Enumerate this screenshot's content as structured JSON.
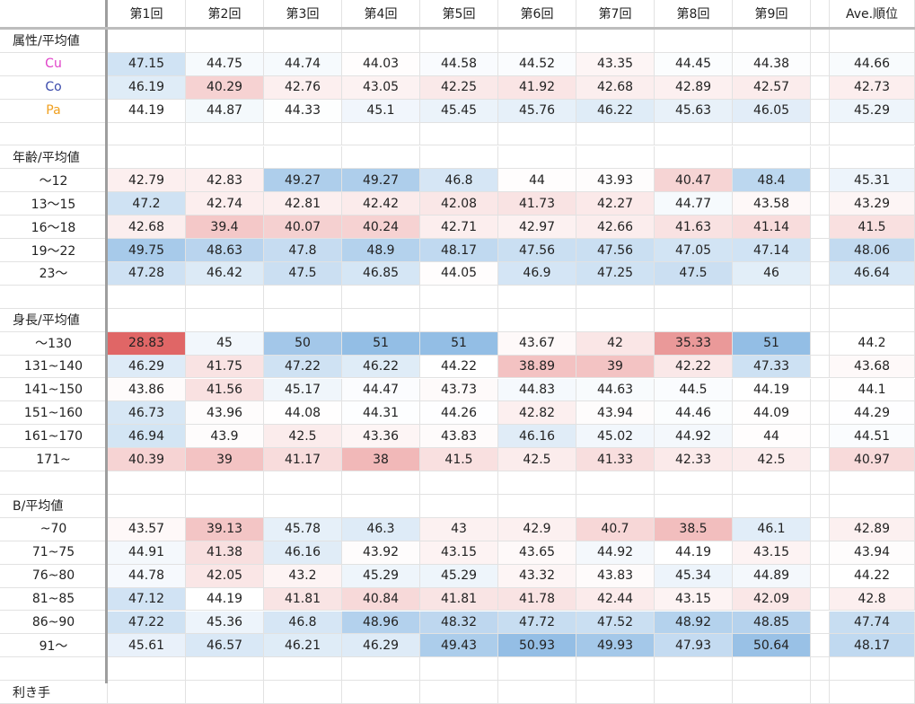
{
  "sheet": {
    "headers": [
      "第1回",
      "第2回",
      "第3回",
      "第4回",
      "第5回",
      "第6回",
      "第7回",
      "第8回",
      "第9回",
      "",
      "Ave.順位"
    ],
    "rows": [
      {
        "type": "section",
        "label": "属性/平均値"
      },
      {
        "type": "data",
        "label": "Cu",
        "color": "#e040c8",
        "values": [
          "47.15",
          "44.75",
          "44.74",
          "44.03",
          "44.58",
          "44.52",
          "43.35",
          "44.45",
          "44.38",
          "44.66"
        ]
      },
      {
        "type": "data",
        "label": "Co",
        "color": "#3949ab",
        "values": [
          "46.19",
          "40.29",
          "42.76",
          "43.05",
          "42.25",
          "41.92",
          "42.68",
          "42.89",
          "42.57",
          "42.73"
        ]
      },
      {
        "type": "data",
        "label": "Pa",
        "color": "#f0a020",
        "values": [
          "44.19",
          "44.87",
          "44.33",
          "45.1",
          "45.45",
          "45.76",
          "46.22",
          "45.63",
          "46.05",
          "45.29"
        ]
      },
      {
        "type": "blank"
      },
      {
        "type": "section",
        "label": "年齢/平均値"
      },
      {
        "type": "data",
        "label": "〜12",
        "values": [
          "42.79",
          "42.83",
          "49.27",
          "49.27",
          "46.8",
          "44",
          "43.93",
          "40.47",
          "48.4",
          "45.31"
        ]
      },
      {
        "type": "data",
        "label": "13〜15",
        "values": [
          "47.2",
          "42.74",
          "42.81",
          "42.42",
          "42.08",
          "41.73",
          "42.27",
          "44.77",
          "43.58",
          "43.29"
        ]
      },
      {
        "type": "data",
        "label": "16〜18",
        "values": [
          "42.68",
          "39.4",
          "40.07",
          "40.24",
          "42.71",
          "42.97",
          "42.66",
          "41.63",
          "41.14",
          "41.5"
        ]
      },
      {
        "type": "data",
        "label": "19〜22",
        "values": [
          "49.75",
          "48.63",
          "47.8",
          "48.9",
          "48.17",
          "47.56",
          "47.56",
          "47.05",
          "47.14",
          "48.06"
        ]
      },
      {
        "type": "data",
        "label": "23〜",
        "values": [
          "47.28",
          "46.42",
          "47.5",
          "46.85",
          "44.05",
          "46.9",
          "47.25",
          "47.5",
          "46",
          "46.64"
        ]
      },
      {
        "type": "blank"
      },
      {
        "type": "section",
        "label": "身長/平均値"
      },
      {
        "type": "data",
        "label": "〜130",
        "values": [
          "28.83",
          "45",
          "50",
          "51",
          "51",
          "43.67",
          "42",
          "35.33",
          "51",
          "44.2"
        ]
      },
      {
        "type": "data",
        "label": "131~140",
        "values": [
          "46.29",
          "41.75",
          "47.22",
          "46.22",
          "44.22",
          "38.89",
          "39",
          "42.22",
          "47.33",
          "43.68"
        ]
      },
      {
        "type": "data",
        "label": "141~150",
        "values": [
          "43.86",
          "41.56",
          "45.17",
          "44.47",
          "43.73",
          "44.83",
          "44.63",
          "44.5",
          "44.19",
          "44.1"
        ]
      },
      {
        "type": "data",
        "label": "151~160",
        "values": [
          "46.73",
          "43.96",
          "44.08",
          "44.31",
          "44.26",
          "42.82",
          "43.94",
          "44.46",
          "44.09",
          "44.29"
        ]
      },
      {
        "type": "data",
        "label": "161~170",
        "values": [
          "46.94",
          "43.9",
          "42.5",
          "43.36",
          "43.83",
          "46.16",
          "45.02",
          "44.92",
          "44",
          "44.51"
        ]
      },
      {
        "type": "data",
        "label": "171~",
        "values": [
          "40.39",
          "39",
          "41.17",
          "38",
          "41.5",
          "42.5",
          "41.33",
          "42.33",
          "42.5",
          "40.97"
        ]
      },
      {
        "type": "blank"
      },
      {
        "type": "section",
        "label": "B/平均値"
      },
      {
        "type": "data",
        "label": "~70",
        "values": [
          "43.57",
          "39.13",
          "45.78",
          "46.3",
          "43",
          "42.9",
          "40.7",
          "38.5",
          "46.1",
          "42.89"
        ]
      },
      {
        "type": "data",
        "label": "71~75",
        "values": [
          "44.91",
          "41.38",
          "46.16",
          "43.92",
          "43.15",
          "43.65",
          "44.92",
          "44.19",
          "43.15",
          "43.94"
        ]
      },
      {
        "type": "data",
        "label": "76~80",
        "values": [
          "44.78",
          "42.05",
          "43.2",
          "45.29",
          "45.29",
          "43.32",
          "43.83",
          "45.34",
          "44.89",
          "44.22"
        ]
      },
      {
        "type": "data",
        "label": "81~85",
        "values": [
          "47.12",
          "44.19",
          "41.81",
          "40.84",
          "41.81",
          "41.78",
          "42.44",
          "43.15",
          "42.09",
          "42.8"
        ]
      },
      {
        "type": "data",
        "label": "86~90",
        "values": [
          "47.22",
          "45.36",
          "46.8",
          "48.96",
          "48.32",
          "47.72",
          "47.52",
          "48.92",
          "48.85",
          "47.74"
        ]
      },
      {
        "type": "data",
        "label": "91〜",
        "values": [
          "45.61",
          "46.57",
          "46.21",
          "46.29",
          "49.43",
          "50.93",
          "49.93",
          "47.93",
          "50.64",
          "48.17"
        ]
      },
      {
        "type": "blank"
      },
      {
        "type": "section",
        "label": "利き手"
      }
    ]
  },
  "colors": {
    "low": "#e06666",
    "mid": "#ffffff",
    "high": "#6fa8dc",
    "grid": "#e2e2e2",
    "frozen_line": "#9e9e9e"
  }
}
